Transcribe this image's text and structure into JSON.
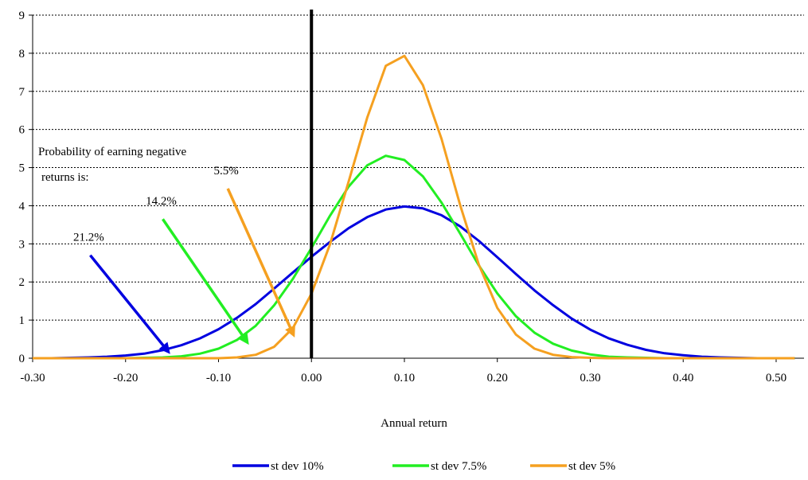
{
  "chart_data": {
    "type": "line",
    "title": "",
    "xlabel": "Annual return",
    "ylabel": "",
    "xlim": [
      -0.3,
      0.53
    ],
    "ylim": [
      0,
      9
    ],
    "x_ticks": [
      "-0.30",
      "-0.20",
      "-0.10",
      "0.00",
      "0.10",
      "0.20",
      "0.30",
      "0.40",
      "0.50"
    ],
    "y_ticks": [
      "0",
      "1",
      "2",
      "3",
      "4",
      "5",
      "6",
      "7",
      "8",
      "9"
    ],
    "grid": "horizontal dashed",
    "legend_placement": "bottom",
    "vertical_marker_x": 0.0,
    "mean": 0.085,
    "x": [
      -0.3,
      -0.28,
      -0.26,
      -0.24,
      -0.22,
      -0.2,
      -0.18,
      -0.16,
      -0.14,
      -0.12,
      -0.1,
      -0.08,
      -0.06,
      -0.04,
      -0.02,
      0.0,
      0.02,
      0.04,
      0.06,
      0.08,
      0.1,
      0.12,
      0.14,
      0.16,
      0.18,
      0.2,
      0.22,
      0.24,
      0.26,
      0.28,
      0.3,
      0.32,
      0.34,
      0.36,
      0.38,
      0.4,
      0.42,
      0.44,
      0.46,
      0.48,
      0.5,
      0.52
    ],
    "series": [
      {
        "name": "st dev 10%",
        "color": "#0000e0",
        "values": [
          0.0,
          0.0,
          0.01,
          0.02,
          0.04,
          0.07,
          0.12,
          0.21,
          0.34,
          0.52,
          0.76,
          1.06,
          1.42,
          1.83,
          2.25,
          2.66,
          3.05,
          3.41,
          3.7,
          3.9,
          3.98,
          3.93,
          3.75,
          3.46,
          3.08,
          2.65,
          2.21,
          1.78,
          1.39,
          1.04,
          0.75,
          0.52,
          0.35,
          0.22,
          0.13,
          0.08,
          0.04,
          0.02,
          0.01,
          0.0,
          0.0,
          0.0
        ]
      },
      {
        "name": "st dev 7.5%",
        "color": "#22ee22",
        "values": [
          0.0,
          0.0,
          0.0,
          0.0,
          0.0,
          0.0,
          0.01,
          0.02,
          0.05,
          0.12,
          0.25,
          0.48,
          0.85,
          1.39,
          2.08,
          2.89,
          3.74,
          4.5,
          5.06,
          5.31,
          5.2,
          4.77,
          4.08,
          3.27,
          2.44,
          1.7,
          1.1,
          0.67,
          0.38,
          0.2,
          0.1,
          0.04,
          0.02,
          0.01,
          0.0,
          0.0,
          0.0,
          0.0,
          0.0,
          0.0,
          0.0,
          0.0
        ]
      },
      {
        "name": "st dev 5%",
        "color": "#f5a020",
        "values": [
          0.0,
          0.0,
          0.0,
          0.0,
          0.0,
          0.0,
          0.0,
          0.0,
          0.0,
          0.0,
          0.0,
          0.02,
          0.09,
          0.3,
          0.79,
          1.69,
          2.99,
          4.63,
          6.31,
          7.67,
          7.93,
          7.16,
          5.75,
          4.02,
          2.46,
          1.32,
          0.62,
          0.25,
          0.09,
          0.03,
          0.01,
          0.0,
          0.0,
          0.0,
          0.0,
          0.0,
          0.0,
          0.0,
          0.0,
          0.0,
          0.0,
          0.0
        ]
      }
    ],
    "annotation_text": [
      "Probability of earning negative",
      "returns is:"
    ],
    "annotations": [
      {
        "label": "21.2%",
        "color": "#0000e0",
        "from": [
          -0.238,
          2.7
        ],
        "to": [
          -0.155,
          0.2
        ]
      },
      {
        "label": "14.2%",
        "color": "#22ee22",
        "from": [
          -0.16,
          3.65
        ],
        "to": [
          -0.07,
          0.45
        ]
      },
      {
        "label": "5.5%",
        "color": "#f5a020",
        "from": [
          -0.09,
          4.45
        ],
        "to": [
          -0.02,
          0.65
        ]
      }
    ]
  }
}
